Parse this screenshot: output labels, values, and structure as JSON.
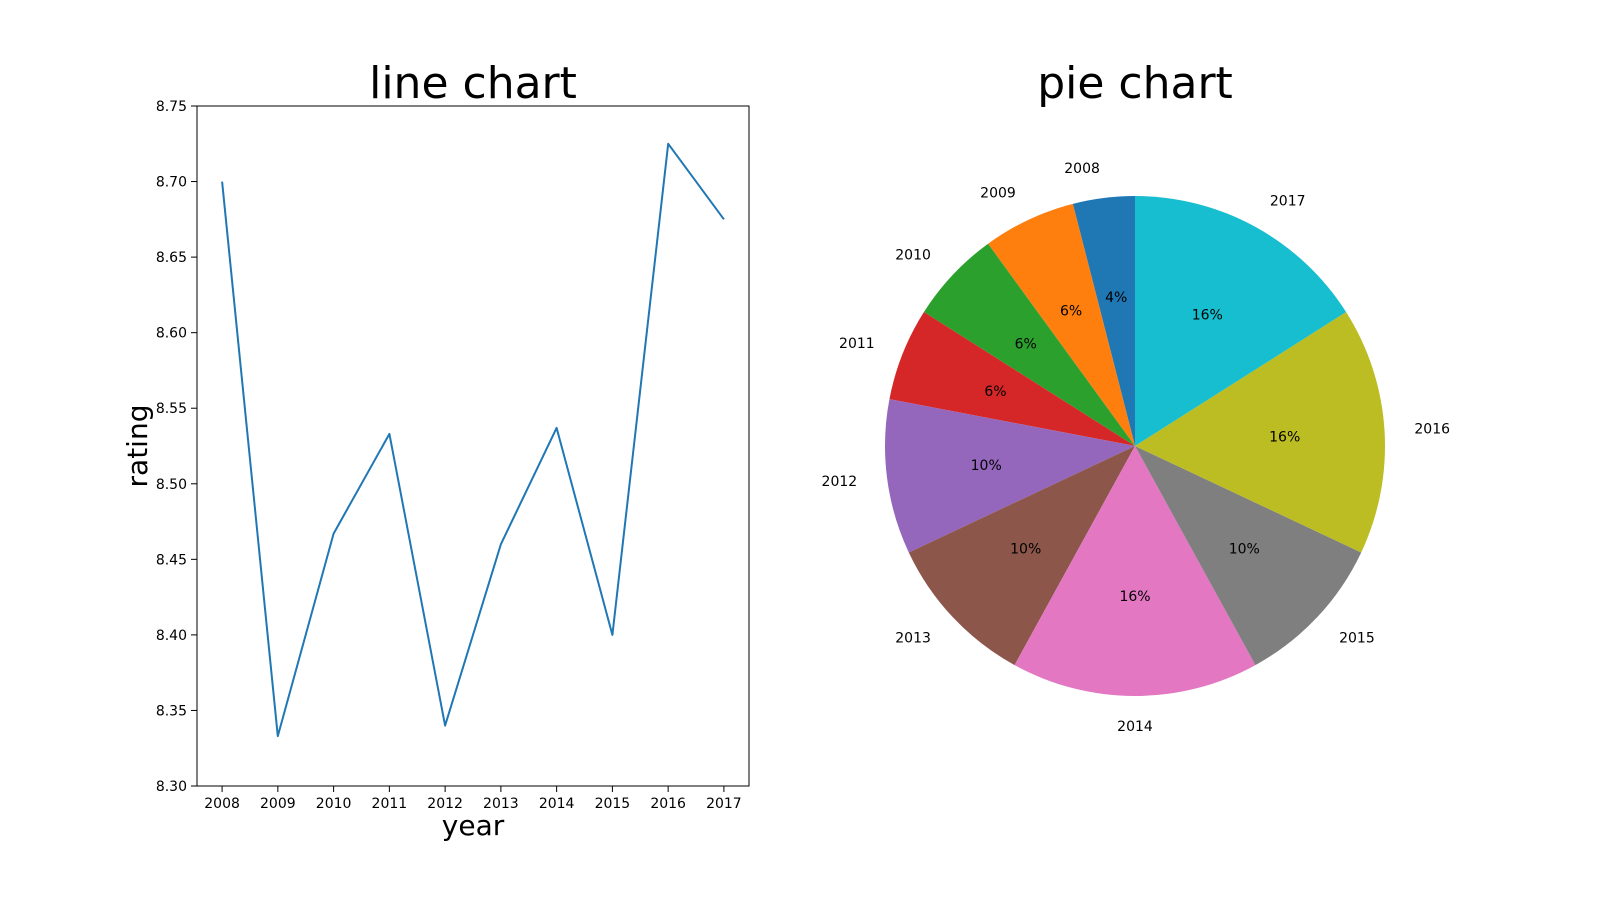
{
  "chart_data": [
    {
      "type": "line",
      "title": "line chart",
      "xlabel": "year",
      "ylabel": "rating",
      "x": [
        "2008",
        "2009",
        "2010",
        "2011",
        "2012",
        "2013",
        "2014",
        "2015",
        "2016",
        "2017"
      ],
      "y": [
        8.7,
        8.333,
        8.467,
        8.533,
        8.34,
        8.46,
        8.537,
        8.4,
        8.725,
        8.675
      ],
      "ylim": [
        8.3,
        8.75
      ],
      "yticks": [
        "8.30",
        "8.35",
        "8.40",
        "8.45",
        "8.50",
        "8.55",
        "8.60",
        "8.65",
        "8.70",
        "8.75"
      ],
      "grid": false,
      "color": "#1f77b4"
    },
    {
      "type": "pie",
      "title": "pie chart",
      "labels": [
        "2008",
        "2009",
        "2010",
        "2011",
        "2012",
        "2013",
        "2014",
        "2015",
        "2016",
        "2017"
      ],
      "values": [
        4,
        6,
        6,
        6,
        10,
        10,
        16,
        10,
        16,
        16
      ],
      "pct_labels": [
        "4%",
        "6%",
        "6%",
        "6%",
        "10%",
        "10%",
        "16%",
        "10%",
        "16%",
        "16%"
      ],
      "colors": [
        "#1f77b4",
        "#ff7f0e",
        "#2ca02c",
        "#d62728",
        "#9467bd",
        "#8c564b",
        "#e377c2",
        "#7f7f7f",
        "#bcbd22",
        "#17becf"
      ],
      "direction": "counterclockwise",
      "start": "top"
    }
  ]
}
